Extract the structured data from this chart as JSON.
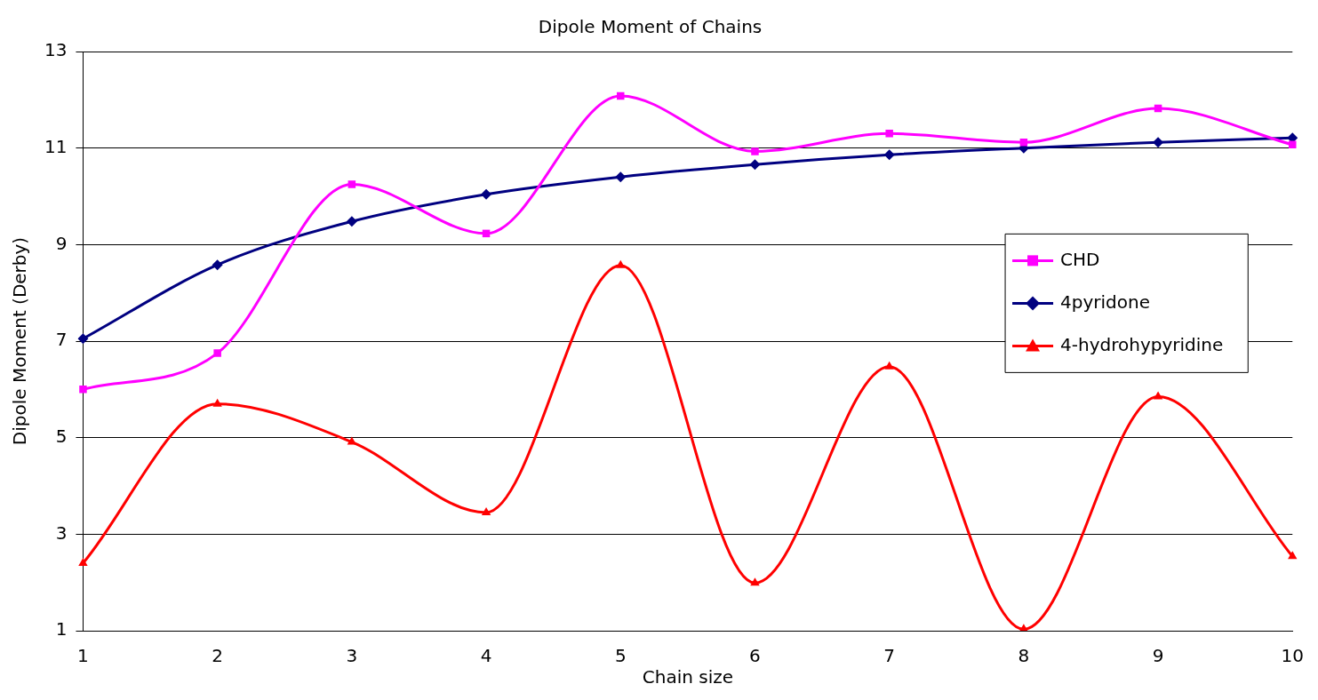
{
  "chart_data": {
    "type": "line",
    "title": "Dipole Moment of Chains",
    "xlabel": "Chain size",
    "ylabel": "Dipole Moment (Derby)",
    "categories": [
      "1",
      "2",
      "3",
      "4",
      "5",
      "6",
      "7",
      "8",
      "9",
      "10"
    ],
    "series": [
      {
        "name": "CHD",
        "color": "#ff00ff",
        "marker": "square",
        "values": [
          6.0,
          6.75,
          10.25,
          9.23,
          12.08,
          10.93,
          11.3,
          11.12,
          11.82,
          11.07
        ]
      },
      {
        "name": "4pyridone",
        "color": "#000080",
        "marker": "diamond",
        "values": [
          7.05,
          8.58,
          9.48,
          10.04,
          10.4,
          10.66,
          10.86,
          11.0,
          11.12,
          11.21
        ]
      },
      {
        "name": "4-hydrohypyridine",
        "color": "#ff0000",
        "marker": "triangle",
        "values": [
          2.4,
          5.7,
          4.91,
          3.45,
          8.57,
          1.99,
          6.47,
          1.03,
          5.85,
          2.54
        ]
      }
    ],
    "ylim": [
      1,
      13
    ],
    "yticks": [
      1,
      3,
      5,
      7,
      9,
      11,
      13
    ],
    "grid": "y",
    "legend": "right",
    "line_style": "solid"
  }
}
